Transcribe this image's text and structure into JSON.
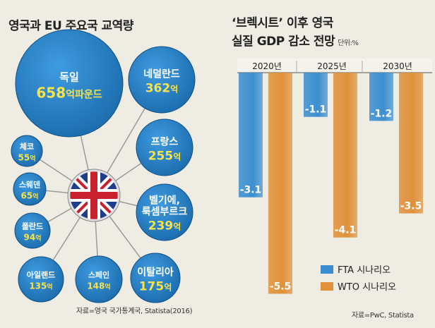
{
  "left": {
    "title": "영국과 EU 주요국 교역량",
    "source": "자료=영국 국가통계국, Statista(2016)",
    "hub_label": "영국 국기",
    "bubbles": [
      {
        "name": "독일",
        "value": "658",
        "unit": "억파운드"
      },
      {
        "name": "네덜란드",
        "value": "362",
        "unit": "억"
      },
      {
        "name": "프랑스",
        "value": "255",
        "unit": "억"
      },
      {
        "name": "벨기에,",
        "name2": "룩셈부르크",
        "value": "239",
        "unit": "억"
      },
      {
        "name": "이탈리아",
        "value": "175",
        "unit": "억"
      },
      {
        "name": "스페인",
        "value": "148",
        "unit": "억"
      },
      {
        "name": "아일랜드",
        "value": "135",
        "unit": "억"
      },
      {
        "name": "폴란드",
        "value": "94",
        "unit": "억"
      },
      {
        "name": "스웨덴",
        "value": "65",
        "unit": "억"
      },
      {
        "name": "체코",
        "value": "55",
        "unit": "억"
      }
    ],
    "colors": {
      "bubble": "#1d6fb0",
      "value": "#f7e24a",
      "line": "#9a9a9a"
    }
  },
  "right": {
    "title_line1": "‘브렉시트’ 이후 영국",
    "title_line2": "실질 GDP 감소 전망",
    "unit_label": "단위:%",
    "source": "자료=PwC, Statista"
  },
  "chart_data": {
    "type": "bar",
    "categories": [
      "2020년",
      "2025년",
      "2030년"
    ],
    "series": [
      {
        "name": "FTA 시나리오",
        "values": [
          -3.1,
          -1.1,
          -1.2
        ],
        "labels": [
          "-3.1",
          "-1.1",
          "-1.2"
        ],
        "color": "#3b8fd0"
      },
      {
        "name": "WTO 시나리오",
        "values": [
          -5.5,
          -4.1,
          -3.5
        ],
        "labels": [
          "-5.5",
          "-4.1",
          "-3.5"
        ],
        "color": "#e0913a"
      }
    ],
    "ylim": [
      -6,
      0
    ],
    "legend": "bottom-right"
  }
}
